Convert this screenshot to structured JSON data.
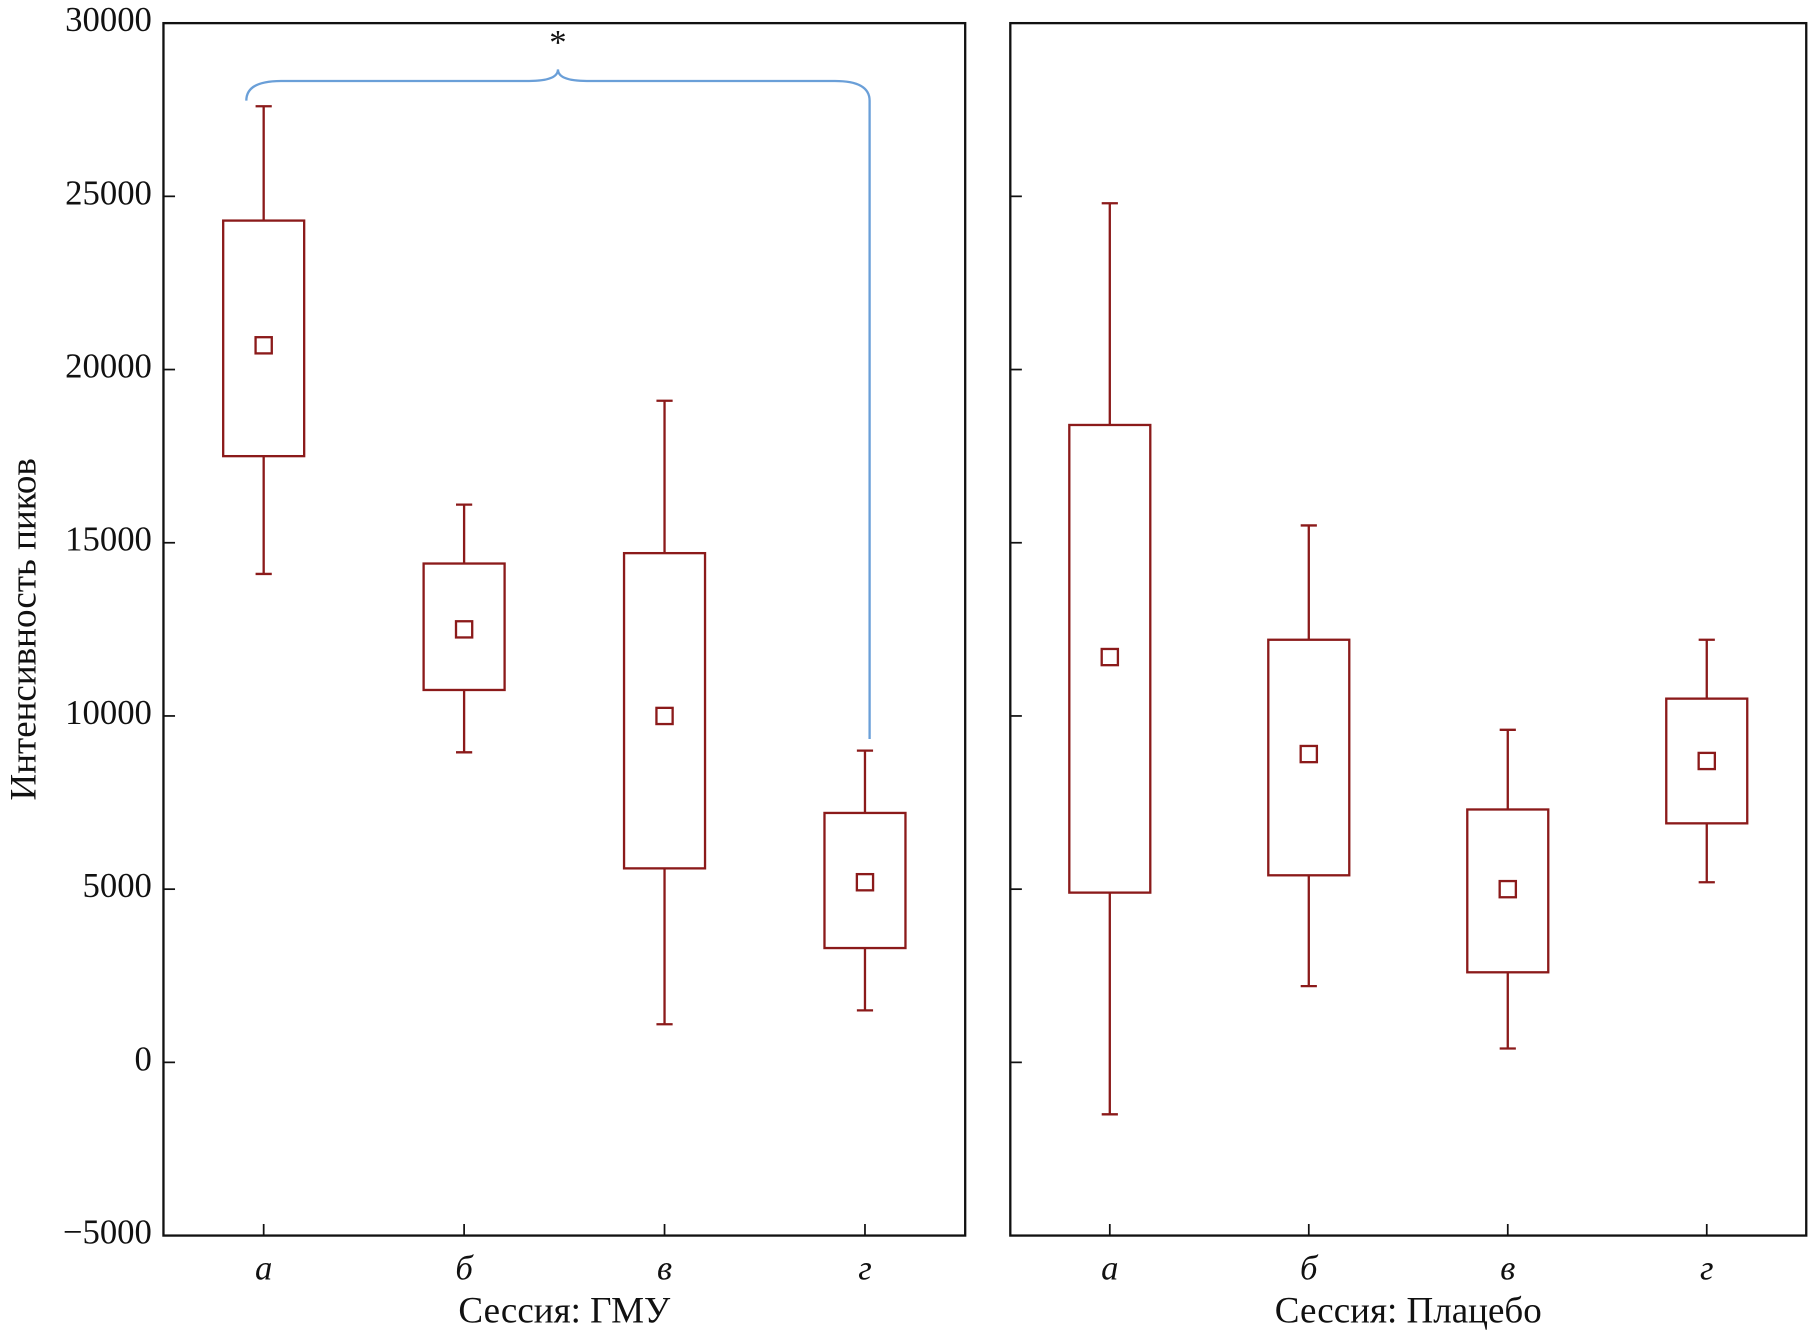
{
  "chart_data": [
    {
      "type": "box",
      "ylabel": "Интенсивность пиков",
      "xlabel": "Сессия: ГМУ",
      "annotation": "*",
      "color": "#8b1a1a",
      "annotation_color": "#6a9fd8",
      "categories": [
        "а",
        "б",
        "в",
        "г"
      ],
      "boxes": [
        {
          "low": 14100,
          "q1": 17500,
          "mean": 20700,
          "q3": 24300,
          "high": 27600
        },
        {
          "low": 8950,
          "q1": 10750,
          "mean": 12500,
          "q3": 14400,
          "high": 16100
        },
        {
          "low": 1100,
          "q1": 5600,
          "mean": 10000,
          "q3": 14700,
          "high": 19100
        },
        {
          "low": 1500,
          "q1": 3300,
          "mean": 5200,
          "q3": 7200,
          "high": 9000
        }
      ],
      "ylim": [
        -5000,
        30000
      ],
      "yticks": [
        {
          "value": -5000,
          "label": "−5000"
        },
        0,
        5000,
        10000,
        15000,
        20000,
        25000,
        30000
      ]
    },
    {
      "type": "box",
      "xlabel": "Сессия: Плацебо",
      "color": "#8b1a1a",
      "categories": [
        "а",
        "б",
        "в",
        "г"
      ],
      "boxes": [
        {
          "low": -1500,
          "q1": 4900,
          "mean": 11700,
          "q3": 18400,
          "high": 24800
        },
        {
          "low": 2200,
          "q1": 5400,
          "mean": 8900,
          "q3": 12200,
          "high": 15500
        },
        {
          "low": 400,
          "q1": 2600,
          "mean": 5000,
          "q3": 7300,
          "high": 9600
        },
        {
          "low": 5200,
          "q1": 6900,
          "mean": 8700,
          "q3": 10500,
          "high": 12200
        }
      ],
      "ylim": [
        -5000,
        30000
      ],
      "yticks": [
        -5000,
        0,
        5000,
        10000,
        15000,
        20000,
        25000,
        30000
      ]
    }
  ]
}
